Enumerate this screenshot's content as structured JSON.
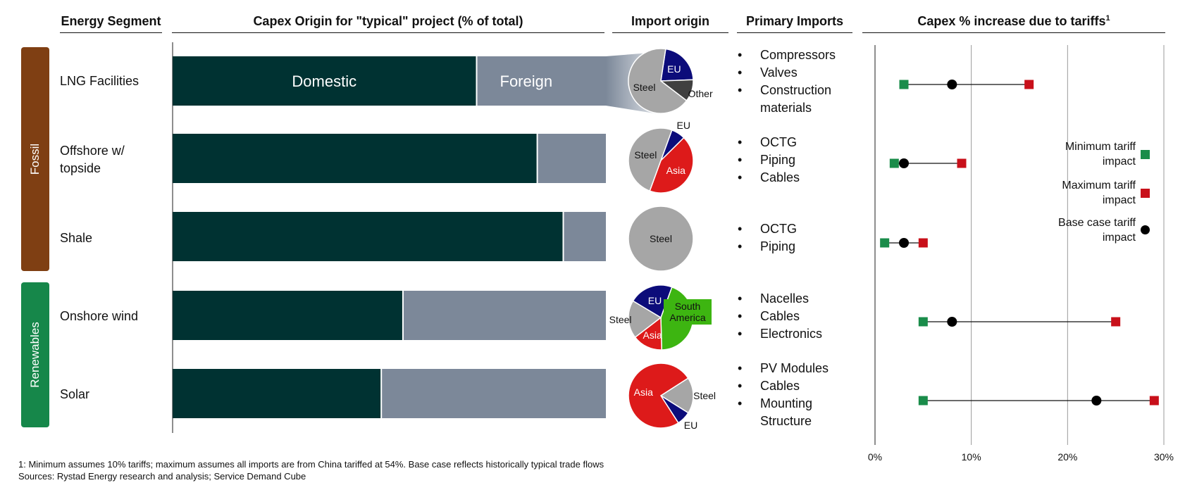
{
  "headers": {
    "segment": "Energy Segment",
    "capex": "Capex Origin for \"typical\" project (% of total)",
    "import_origin": "Import origin",
    "primary_imports": "Primary Imports",
    "tariff": "Capex % increase due to tariffs",
    "tariff_sup": "1"
  },
  "groups": [
    {
      "label": "Fossil",
      "color": "#7f3f13"
    },
    {
      "label": "Renewables",
      "color": "#16874a"
    }
  ],
  "colors": {
    "domestic": "#003232",
    "foreign": "#7c8899",
    "min_marker": "#1a8c4a",
    "max_marker": "#c8101a",
    "base_marker": "#000000",
    "grid": "#9a9a9a"
  },
  "segments": [
    {
      "name": "LNG Facilities",
      "primary_imports": [
        "Compressors",
        "Valves",
        "Construction materials"
      ]
    },
    {
      "name": "Offshore w/ topside",
      "primary_imports": [
        "OCTG",
        "Piping",
        "Cables"
      ]
    },
    {
      "name": "Shale",
      "primary_imports": [
        "OCTG",
        "Piping"
      ]
    },
    {
      "name": "Onshore wind",
      "primary_imports": [
        "Nacelles",
        "Cables",
        "Electronics"
      ]
    },
    {
      "name": "Solar",
      "primary_imports": [
        "PV Modules",
        "Cables",
        "Mounting Structure"
      ]
    }
  ],
  "bar_labels": {
    "domestic": "Domestic",
    "foreign": "Foreign"
  },
  "legend": {
    "min": "Minimum tariff impact",
    "max": "Maximum tariff impact",
    "base": "Base case tariff impact"
  },
  "chart_data": [
    {
      "type": "bar",
      "title": "Capex Origin for \"typical\" project (% of total)",
      "orientation": "horizontal-stacked",
      "categories": [
        "LNG Facilities",
        "Offshore w/ topside",
        "Shale",
        "Onshore wind",
        "Solar"
      ],
      "series": [
        {
          "name": "Domestic",
          "values": [
            70,
            84,
            90,
            53,
            48
          ]
        },
        {
          "name": "Foreign",
          "values": [
            30,
            16,
            10,
            47,
            52
          ]
        }
      ],
      "xlim": [
        0,
        100
      ]
    },
    {
      "type": "pie",
      "title": "Import origin",
      "pies": [
        {
          "category": "LNG Facilities",
          "slices": [
            {
              "label": "EU",
              "value": 22,
              "color": "#0c0c7a",
              "text_color": "#ffffff"
            },
            {
              "label": "Other",
              "value": 11,
              "color": "#404040",
              "text_color": "#111111"
            },
            {
              "label": "Steel",
              "value": 67,
              "color": "#a6a6a6",
              "text_color": "#111111"
            }
          ]
        },
        {
          "category": "Offshore w/ topside",
          "slices": [
            {
              "label": "EU",
              "value": 7,
              "color": "#0c0c7a",
              "text_color": "#111111"
            },
            {
              "label": "Asia",
              "value": 43,
              "color": "#dd1a1a",
              "text_color": "#ffffff"
            },
            {
              "label": "Steel",
              "value": 50,
              "color": "#a6a6a6",
              "text_color": "#111111"
            }
          ]
        },
        {
          "category": "Shale",
          "slices": [
            {
              "label": "Steel",
              "value": 100,
              "color": "#a6a6a6",
              "text_color": "#111111"
            }
          ]
        },
        {
          "category": "Onshore wind",
          "slices": [
            {
              "label": "South America",
              "value": 44,
              "color": "#3db511",
              "text_color": "#111111"
            },
            {
              "label": "Asia",
              "value": 15,
              "color": "#dd1a1a",
              "text_color": "#ffffff"
            },
            {
              "label": "Steel",
              "value": 19,
              "color": "#a6a6a6",
              "text_color": "#111111"
            },
            {
              "label": "EU",
              "value": 22,
              "color": "#0c0c7a",
              "text_color": "#ffffff"
            }
          ]
        },
        {
          "category": "Solar",
          "slices": [
            {
              "label": "Steel",
              "value": 18,
              "color": "#a6a6a6",
              "text_color": "#111111"
            },
            {
              "label": "EU",
              "value": 7,
              "color": "#0c0c7a",
              "text_color": "#111111"
            },
            {
              "label": "Asia",
              "value": 75,
              "color": "#dd1a1a",
              "text_color": "#ffffff"
            }
          ]
        }
      ]
    },
    {
      "type": "scatter",
      "title": "Capex % increase due to tariffs",
      "categories": [
        "LNG Facilities",
        "Offshore w/ topside",
        "Shale",
        "Onshore wind",
        "Solar"
      ],
      "series": [
        {
          "name": "Minimum tariff impact",
          "values": [
            3,
            2,
            1,
            5,
            5
          ]
        },
        {
          "name": "Base case tariff impact",
          "values": [
            8,
            3,
            3,
            8,
            23
          ]
        },
        {
          "name": "Maximum tariff impact",
          "values": [
            16,
            9,
            5,
            25,
            29
          ]
        }
      ],
      "xlim": [
        0,
        30
      ],
      "xticks": [
        "0%",
        "10%",
        "20%",
        "30%"
      ],
      "grid": true,
      "legend_position": "right"
    }
  ],
  "footnotes": [
    "1: Minimum assumes 10% tariffs; maximum assumes all imports are from China tariffed at 54%. Base case reflects historically typical trade flows",
    "Sources: Rystad Energy research and analysis; Service Demand Cube"
  ]
}
